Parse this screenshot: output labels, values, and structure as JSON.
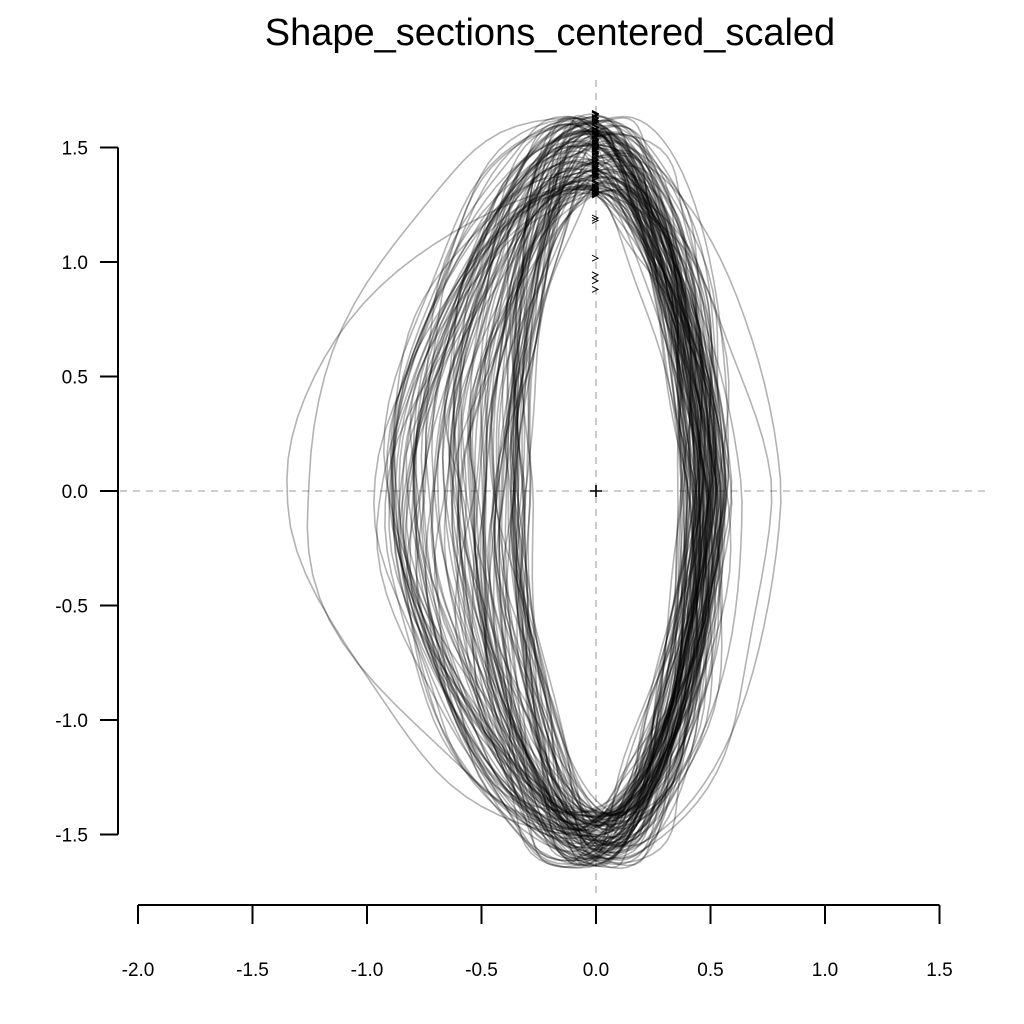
{
  "chart_data": {
    "type": "line",
    "title": "Shape_sections_centered_scaled",
    "xlabel": "",
    "ylabel": "",
    "xlim": [
      -2.0,
      1.5
    ],
    "ylim": [
      -1.5,
      1.5
    ],
    "x_ticks": [
      "-2.0",
      "-1.5",
      "-1.0",
      "-0.5",
      "0.0",
      "0.5",
      "1.0",
      "1.5"
    ],
    "y_ticks": [
      "1.5",
      "1.0",
      "0.5",
      "0.0",
      "-0.5",
      "-1.0",
      "-1.5"
    ],
    "reference_lines": {
      "x": 0.0,
      "y": 0.0,
      "style": "dashed",
      "color": "#bdbdbd"
    },
    "center_marker": {
      "x": 0.0,
      "y": 0.0,
      "symbol": "+"
    },
    "line_color": "rgba(0,0,0,0.3)",
    "grid": false,
    "series_summary": {
      "count": 120,
      "shape": "closed outlines of shape sections, centered at origin and scaled",
      "x_extent": [
        -1.2,
        0.82
      ],
      "y_extent": [
        -1.65,
        1.65
      ],
      "start_point_x": 0.0,
      "start_point_y_range": [
        0.87,
        1.65
      ]
    }
  }
}
